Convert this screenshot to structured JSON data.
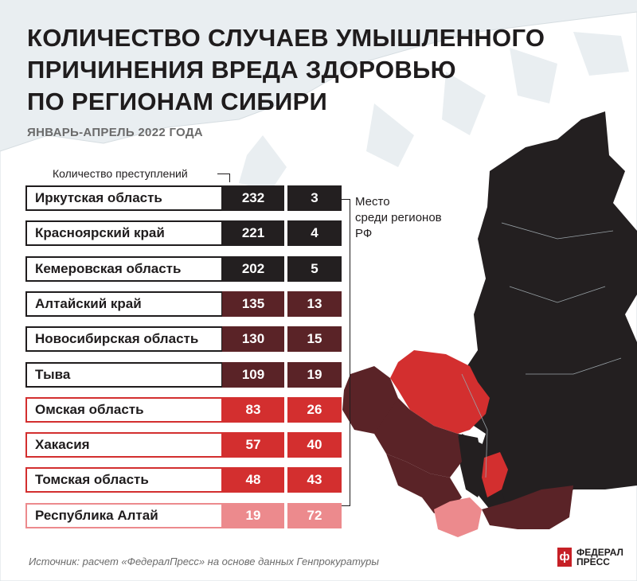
{
  "header": {
    "title_lines": [
      "КОЛИЧЕСТВО СЛУЧАЕВ УМЫШЛЕННОГО",
      "ПРИЧИНЕНИЯ ВРЕДА ЗДОРОВЬЮ",
      "ПО РЕГИОНАМ СИБИРИ"
    ],
    "subtitle": "ЯНВАРЬ-АПРЕЛЬ 2022 ГОДА"
  },
  "labels": {
    "crimes_column": "Количество преступлений",
    "rank_column_lines": [
      "Место",
      "среди регионов",
      "РФ"
    ]
  },
  "colors": {
    "level_1": "#231f20",
    "level_2": "#5a2327",
    "level_3": "#d32f2f",
    "level_4": "#ec8a8d",
    "map_land": "#ffffff",
    "background": "#e9eef1"
  },
  "chart_data": {
    "type": "table",
    "title": "КОЛИЧЕСТВО СЛУЧАЕВ УМЫШЛЕННОГО ПРИЧИНЕНИЯ ВРЕДА ЗДОРОВЬЮ ПО РЕГИОНАМ СИБИРИ",
    "subtitle": "ЯНВАРЬ-АПРЕЛЬ 2022 ГОДА",
    "columns": [
      "",
      "Количество преступлений",
      "Место среди регионов РФ"
    ],
    "rows": [
      {
        "region": "Иркутская область",
        "crimes": 232,
        "rank": 3,
        "color": "#231f20"
      },
      {
        "region": "Красноярский край",
        "crimes": 221,
        "rank": 4,
        "color": "#231f20"
      },
      {
        "region": "Кемеровская область",
        "crimes": 202,
        "rank": 5,
        "color": "#231f20"
      },
      {
        "region": "Алтайский край",
        "crimes": 135,
        "rank": 13,
        "color": "#5a2327"
      },
      {
        "region": "Новосибирская область",
        "crimes": 130,
        "rank": 15,
        "color": "#5a2327"
      },
      {
        "region": "Тыва",
        "crimes": 109,
        "rank": 19,
        "color": "#5a2327"
      },
      {
        "region": "Омская область",
        "crimes": 83,
        "rank": 26,
        "color": "#d32f2f"
      },
      {
        "region": "Хакасия",
        "crimes": 57,
        "rank": 40,
        "color": "#d32f2f"
      },
      {
        "region": "Томская область",
        "crimes": 48,
        "rank": 43,
        "color": "#d32f2f"
      },
      {
        "region": "Республика Алтай",
        "crimes": 19,
        "rank": 72,
        "color": "#ec8a8d"
      }
    ]
  },
  "footer": {
    "source": "Источник: расчет «ФедералПресс» на основе данных Генпрокуратуры",
    "logo_mark": "ф",
    "logo_lines": [
      "ФЕДЕРАЛ",
      "ПРЕСС"
    ]
  }
}
